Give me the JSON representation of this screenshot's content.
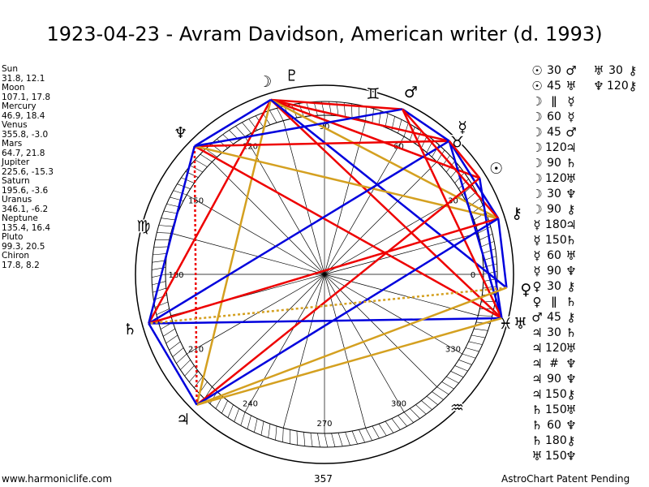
{
  "title": "1923-04-23 - Avram Davidson, American writer (d. 1993)",
  "planets": [
    {
      "name": "Sun",
      "pos": "31.8, 12.1",
      "glyph": "☉",
      "lon": 31.8
    },
    {
      "name": "Moon",
      "pos": "107.1, 17.8",
      "glyph": "☽",
      "lon": 107.1
    },
    {
      "name": "Mercury",
      "pos": "46.9, 18.4",
      "glyph": "☿",
      "lon": 46.9
    },
    {
      "name": "Venus",
      "pos": "355.8, -3.0",
      "glyph": "♀",
      "lon": 355.8
    },
    {
      "name": "Mars",
      "pos": "64.7, 21.8",
      "glyph": "♂",
      "lon": 64.7
    },
    {
      "name": "Jupiter",
      "pos": "225.6, -15.3",
      "glyph": "♃",
      "lon": 225.6
    },
    {
      "name": "Saturn",
      "pos": "195.6, -3.6",
      "glyph": "♄",
      "lon": 195.6
    },
    {
      "name": "Uranus",
      "pos": "346.1, -6.2",
      "glyph": "♅",
      "lon": 346.1
    },
    {
      "name": "Neptune",
      "pos": "135.4, 16.4",
      "glyph": "♆",
      "lon": 135.4
    },
    {
      "name": "Pluto",
      "pos": "99.3, 20.5",
      "glyph": "♇",
      "lon": 99.3
    },
    {
      "name": "Chiron",
      "pos": "17.8, 8.2",
      "glyph": "⚷",
      "lon": 17.8
    }
  ],
  "degree_labels": [
    "0",
    "30",
    "60",
    "90",
    "120",
    "150",
    "180",
    "210",
    "240",
    "270",
    "300",
    "330"
  ],
  "sign_glyphs": [
    {
      "glyph": "♉",
      "lon": 45
    },
    {
      "glyph": "♊",
      "lon": 75
    },
    {
      "glyph": "♍",
      "lon": 165
    },
    {
      "glyph": "♒",
      "lon": 315
    },
    {
      "glyph": "♓",
      "lon": 345
    }
  ],
  "aspect_colors": {
    "red": "#ee0000",
    "blue": "#0000dd",
    "gold": "#d4a020"
  },
  "aspect_lines": [
    {
      "from": "Moon",
      "to": "Mercury",
      "color": "red"
    },
    {
      "from": "Moon",
      "to": "Mars",
      "color": "red"
    },
    {
      "from": "Moon",
      "to": "Sun",
      "color": "red"
    },
    {
      "from": "Moon",
      "to": "Uranus",
      "color": "red"
    },
    {
      "from": "Moon",
      "to": "Saturn",
      "color": "red"
    },
    {
      "from": "Moon",
      "to": "Jupiter",
      "color": "gold"
    },
    {
      "from": "Moon",
      "to": "Chiron",
      "color": "gold"
    },
    {
      "from": "Moon",
      "to": "Neptune",
      "color": "blue"
    },
    {
      "from": "Moon",
      "to": "Venus",
      "color": "blue"
    },
    {
      "from": "Neptune",
      "to": "Mercury",
      "color": "red"
    },
    {
      "from": "Neptune",
      "to": "Uranus",
      "color": "red"
    },
    {
      "from": "Neptune",
      "to": "Jupiter",
      "color": "red",
      "dash": true
    },
    {
      "from": "Neptune",
      "to": "Chiron",
      "color": "gold"
    },
    {
      "from": "Neptune",
      "to": "Mars",
      "color": "blue"
    },
    {
      "from": "Neptune",
      "to": "Saturn",
      "color": "blue"
    },
    {
      "from": "Mercury",
      "to": "Chiron",
      "color": "blue"
    },
    {
      "from": "Mercury",
      "to": "Uranus",
      "color": "blue"
    },
    {
      "from": "Mercury",
      "to": "Saturn",
      "color": "blue"
    },
    {
      "from": "Mercury",
      "to": "Mars",
      "color": "blue"
    },
    {
      "from": "Mars",
      "to": "Chiron",
      "color": "red"
    },
    {
      "from": "Mars",
      "to": "Uranus",
      "color": "red"
    },
    {
      "from": "Sun",
      "to": "Mercury",
      "color": "red"
    },
    {
      "from": "Sun",
      "to": "Jupiter",
      "color": "red"
    },
    {
      "from": "Sun",
      "to": "Uranus",
      "color": "blue"
    },
    {
      "from": "Chiron",
      "to": "Saturn",
      "color": "red"
    },
    {
      "from": "Chiron",
      "to": "Jupiter",
      "color": "blue"
    },
    {
      "from": "Chiron",
      "to": "Venus",
      "color": "blue"
    },
    {
      "from": "Uranus",
      "to": "Saturn",
      "color": "blue"
    },
    {
      "from": "Uranus",
      "to": "Jupiter",
      "color": "gold"
    },
    {
      "from": "Venus",
      "to": "Jupiter",
      "color": "gold"
    },
    {
      "from": "Venus",
      "to": "Saturn",
      "color": "gold",
      "dash": true
    },
    {
      "from": "Saturn",
      "to": "Jupiter",
      "color": "blue"
    }
  ],
  "aspect_list_col1": [
    {
      "p1": "☉",
      "ang": "30",
      "p2": "♂"
    },
    {
      "p1": "☉",
      "ang": "45",
      "p2": "♅"
    },
    {
      "p1": "☽",
      "ang": "ǁ",
      "p2": "☿"
    },
    {
      "p1": "☽",
      "ang": "60",
      "p2": "☿"
    },
    {
      "p1": "☽",
      "ang": "45",
      "p2": "♂"
    },
    {
      "p1": "☽",
      "ang": "120",
      "p2": "♃"
    },
    {
      "p1": "☽",
      "ang": "90",
      "p2": "♄"
    },
    {
      "p1": "☽",
      "ang": "120",
      "p2": "♅"
    },
    {
      "p1": "☽",
      "ang": "30",
      "p2": "♆"
    },
    {
      "p1": "☽",
      "ang": "90",
      "p2": "⚷"
    },
    {
      "p1": "☿",
      "ang": "180",
      "p2": "♃"
    },
    {
      "p1": "☿",
      "ang": "150",
      "p2": "♄"
    },
    {
      "p1": "☿",
      "ang": "60",
      "p2": "♅"
    },
    {
      "p1": "☿",
      "ang": "90",
      "p2": "♆"
    },
    {
      "p1": "♀",
      "ang": "30",
      "p2": "⚷"
    },
    {
      "p1": "♀",
      "ang": "ǁ",
      "p2": "♄"
    },
    {
      "p1": "♂",
      "ang": "45",
      "p2": "⚷"
    },
    {
      "p1": "♃",
      "ang": "30",
      "p2": "♄"
    },
    {
      "p1": "♃",
      "ang": "120",
      "p2": "♅"
    },
    {
      "p1": "♃",
      "ang": "#",
      "p2": "♆"
    },
    {
      "p1": "♃",
      "ang": "90",
      "p2": "♆"
    },
    {
      "p1": "♃",
      "ang": "150",
      "p2": "⚷"
    },
    {
      "p1": "♄",
      "ang": "150",
      "p2": "♅"
    },
    {
      "p1": "♄",
      "ang": "60",
      "p2": "♆"
    },
    {
      "p1": "♄",
      "ang": "180",
      "p2": "⚷"
    },
    {
      "p1": "♅",
      "ang": "150",
      "p2": "♆"
    }
  ],
  "aspect_list_col2": [
    {
      "p1": "♅",
      "ang": "30",
      "p2": "⚷"
    },
    {
      "p1": "♆",
      "ang": "120",
      "p2": "⚷"
    }
  ],
  "footer": {
    "left": "www.harmoniclife.com",
    "mid": "357",
    "right": "AstroChart Patent Pending"
  }
}
